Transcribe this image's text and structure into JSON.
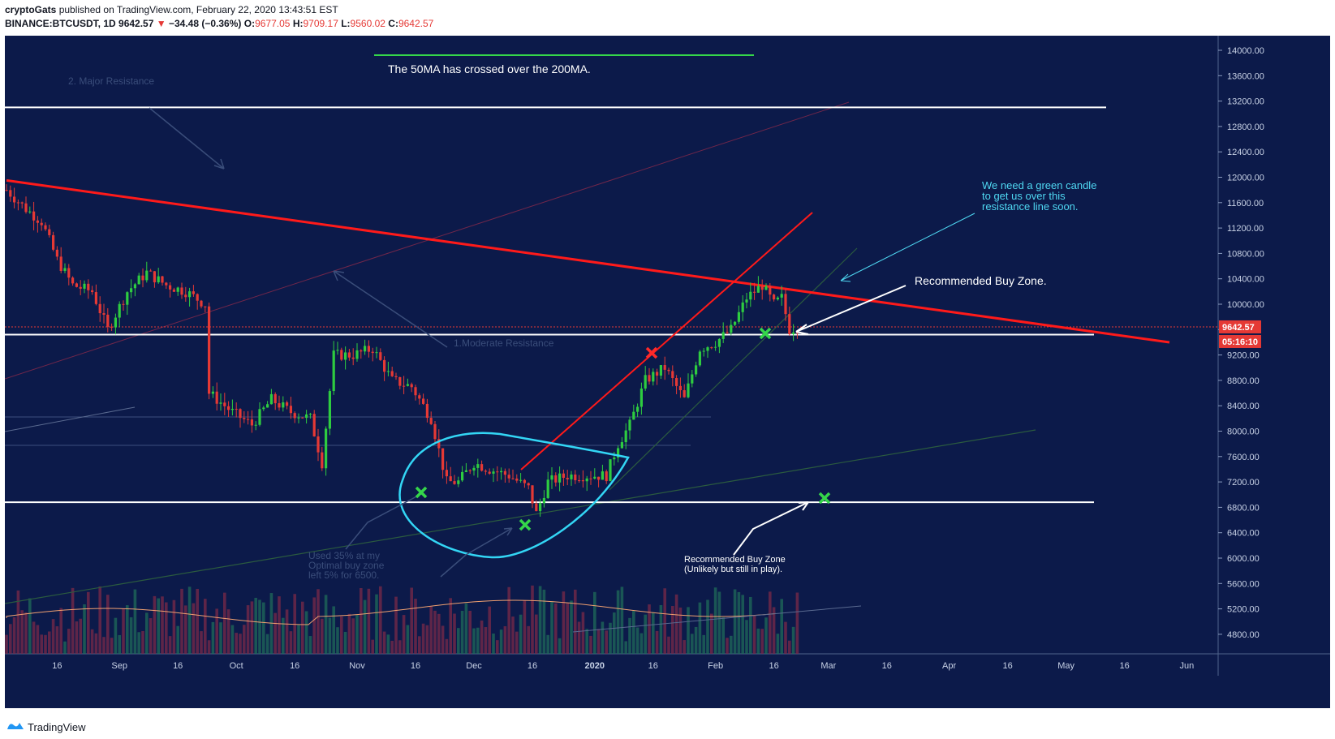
{
  "header": {
    "author": "cryptoGats",
    "published_text": "published on TradingView.com, February 22, 2020 13:43:51 EST",
    "symbol": "BINANCE:BTCUSDT, 1D",
    "last": "9642.57",
    "change_arrow": "▼",
    "change": "−34.48 (−0.36%)",
    "o_label": "O:",
    "o": "9677.05",
    "h_label": "H:",
    "h": "9709.17",
    "l_label": "L:",
    "l": "9560.02",
    "c_label": "C:",
    "c": "9642.57"
  },
  "footer": {
    "brand": "TradingView",
    "brand_icon": "tradingview-logo-icon"
  },
  "colors": {
    "background": "#0c1a4a",
    "up": "#2ecc40",
    "down": "#e53935",
    "resistance": "#ffffff",
    "trend": "#ff1a1a",
    "cyan": "#33d6f5"
  },
  "chart_data": {
    "type": "candlestick",
    "title": "",
    "ylim": [
      4400,
      14200
    ],
    "y_ticks": [
      "14000.00",
      "13600.00",
      "13200.00",
      "12800.00",
      "12400.00",
      "12000.00",
      "11600.00",
      "11200.00",
      "10800.00",
      "10400.00",
      "10000.00",
      "9600.00",
      "9200.00",
      "8800.00",
      "8400.00",
      "8000.00",
      "7600.00",
      "7200.00",
      "6800.00",
      "6400.00",
      "6000.00",
      "5600.00",
      "5200.00",
      "4800.00"
    ],
    "x_ticks": [
      "16",
      "Sep",
      "16",
      "Oct",
      "16",
      "Nov",
      "16",
      "Dec",
      "16",
      "2020",
      "16",
      "Feb",
      "16",
      "Mar",
      "16",
      "Apr",
      "16",
      "May",
      "16",
      "Jun"
    ],
    "price_label": "9642.57",
    "countdown_label": "05:16:10",
    "close_path": [
      [
        "2019-08-03",
        11800
      ],
      [
        "2019-08-08",
        11500
      ],
      [
        "2019-08-12",
        11300
      ],
      [
        "2019-08-16",
        10700
      ],
      [
        "2019-08-20",
        10300
      ],
      [
        "2019-08-25",
        10200
      ],
      [
        "2019-08-29",
        9600
      ],
      [
        "2019-09-03",
        10200
      ],
      [
        "2019-09-08",
        10500
      ],
      [
        "2019-09-13",
        10300
      ],
      [
        "2019-09-18",
        10200
      ],
      [
        "2019-09-23",
        10000
      ],
      [
        "2019-09-24",
        8600
      ],
      [
        "2019-09-30",
        8300
      ],
      [
        "2019-10-05",
        8100
      ],
      [
        "2019-10-10",
        8500
      ],
      [
        "2019-10-15",
        8300
      ],
      [
        "2019-10-20",
        8200
      ],
      [
        "2019-10-23",
        7500
      ],
      [
        "2019-10-26",
        9200
      ],
      [
        "2019-10-31",
        9200
      ],
      [
        "2019-11-05",
        9300
      ],
      [
        "2019-11-10",
        8800
      ],
      [
        "2019-11-15",
        8700
      ],
      [
        "2019-11-20",
        8200
      ],
      [
        "2019-11-24",
        7200
      ],
      [
        "2019-11-27",
        7200
      ],
      [
        "2019-12-01",
        7500
      ],
      [
        "2019-12-05",
        7400
      ],
      [
        "2019-12-10",
        7300
      ],
      [
        "2019-12-15",
        7100
      ],
      [
        "2019-12-17",
        6700
      ],
      [
        "2019-12-20",
        7200
      ],
      [
        "2019-12-25",
        7300
      ],
      [
        "2019-12-30",
        7300
      ],
      [
        "2020-01-04",
        7300
      ],
      [
        "2020-01-07",
        7800
      ],
      [
        "2020-01-10",
        8100
      ],
      [
        "2020-01-14",
        8800
      ],
      [
        "2020-01-19",
        9000
      ],
      [
        "2020-01-24",
        8500
      ],
      [
        "2020-01-28",
        9300
      ],
      [
        "2020-02-01",
        9400
      ],
      [
        "2020-02-05",
        9600
      ],
      [
        "2020-02-09",
        10100
      ],
      [
        "2020-02-13",
        10300
      ],
      [
        "2020-02-16",
        10000
      ],
      [
        "2020-02-18",
        10100
      ],
      [
        "2020-02-20",
        9600
      ],
      [
        "2020-02-22",
        9642
      ]
    ],
    "resistance_levels": [
      13100,
      9520,
      6880
    ],
    "trend_line": [
      [
        "2019-08-03",
        11950
      ],
      [
        "2020-05-25",
        9320
      ]
    ],
    "annotations": [
      "The 50MA has crossed over the 200MA.",
      "2. Major Resistance",
      "1.Moderate Resistance",
      "We need a green candle",
      "to get us over this",
      "resistance line soon.",
      "Recommended Buy Zone.",
      "Recommended Buy Zone",
      "(Unlikely but still in play).",
      "Used 35% at my",
      "Optimal buy zone",
      "left 5% for 6500."
    ]
  }
}
